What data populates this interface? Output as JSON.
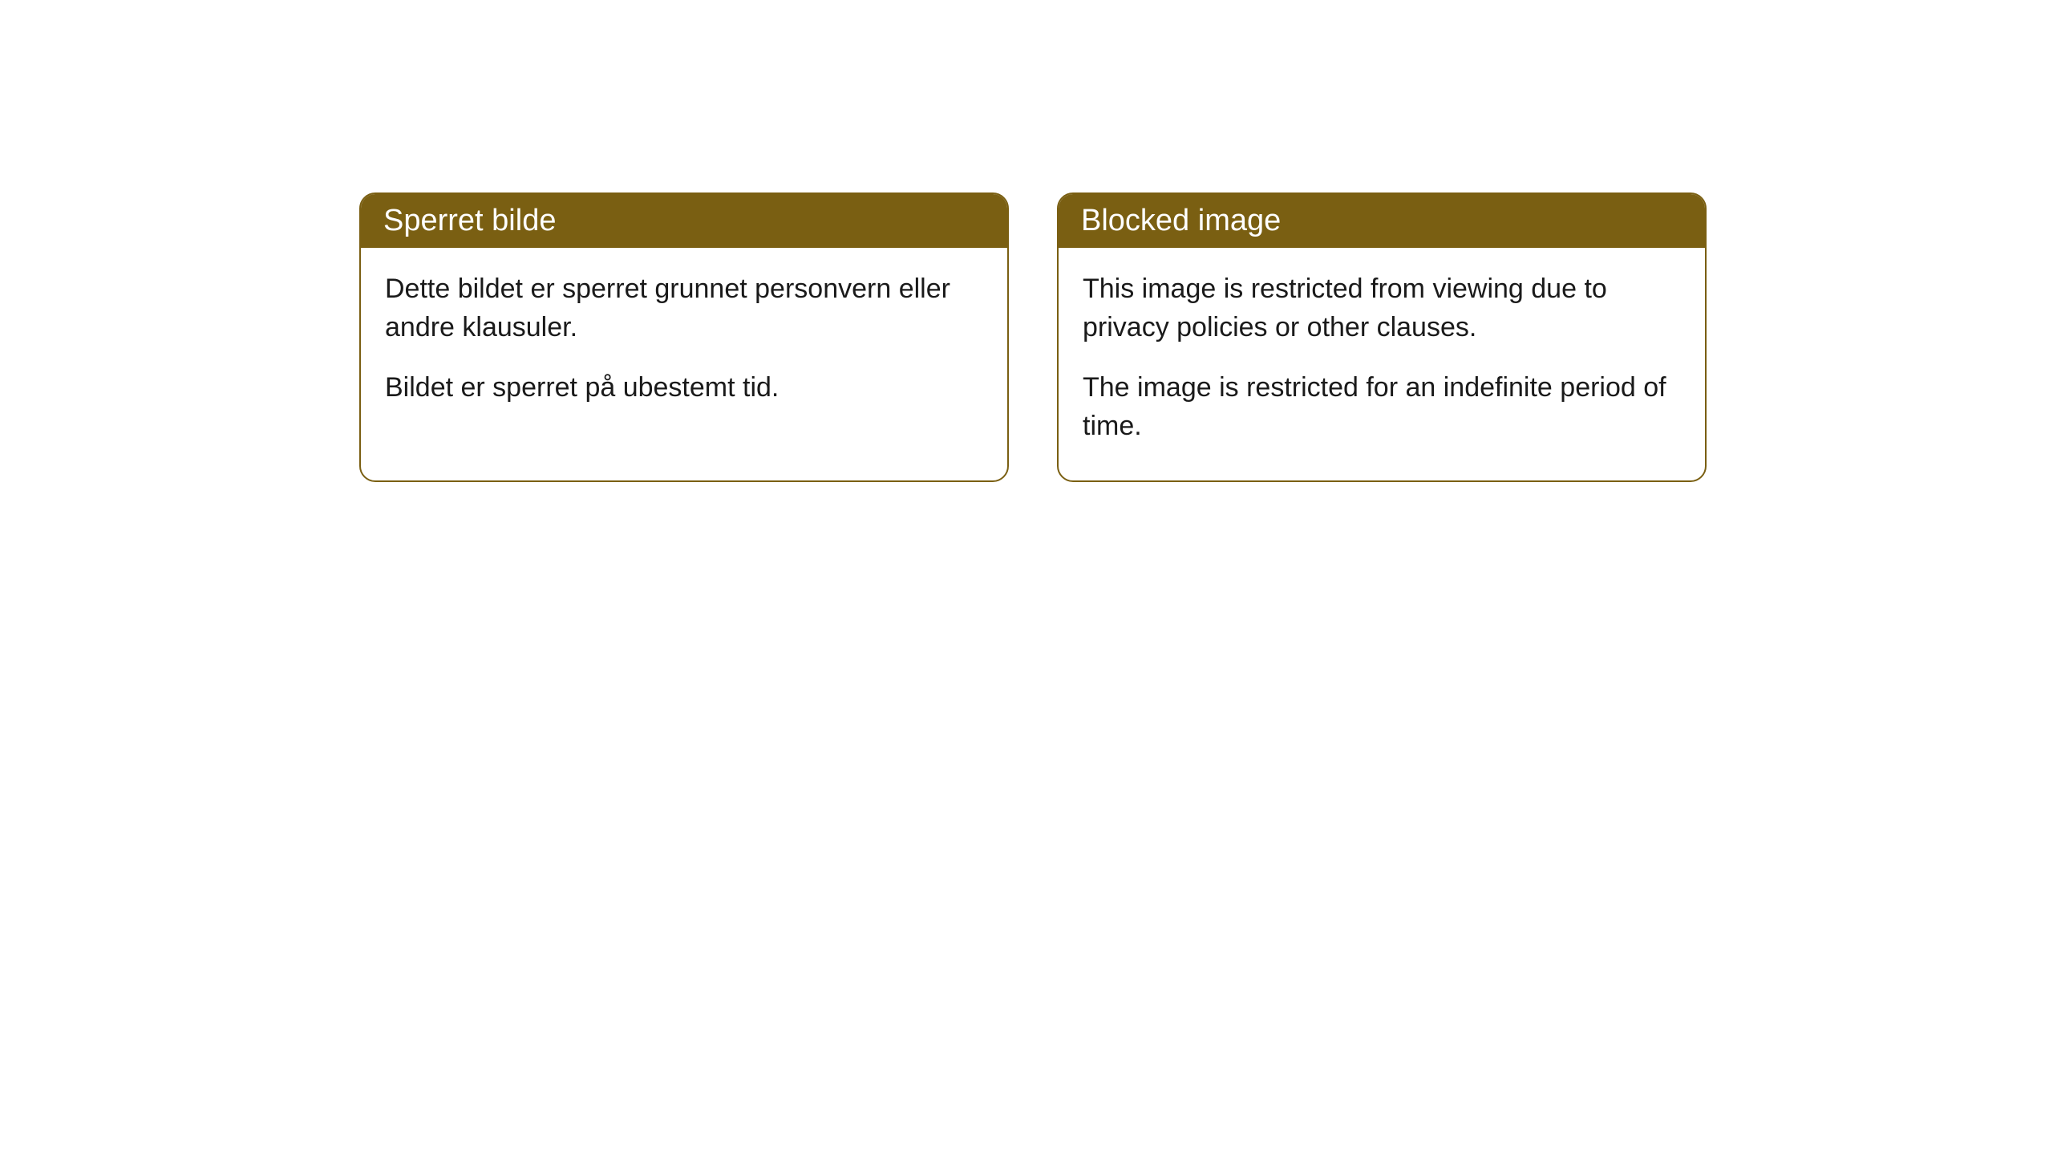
{
  "cards": [
    {
      "title": "Sperret bilde",
      "paragraph1": "Dette bildet er sperret grunnet personvern eller andre klausuler.",
      "paragraph2": "Bildet er sperret på ubestemt tid."
    },
    {
      "title": "Blocked image",
      "paragraph1": "This image is restricted from viewing due to privacy policies or other clauses.",
      "paragraph2": "The image is restricted for an indefinite period of time."
    }
  ],
  "style": {
    "header_bg_color": "#7a5f12",
    "header_text_color": "#ffffff",
    "border_color": "#7a5f12",
    "body_text_color": "#1a1a1a",
    "body_bg_color": "#ffffff",
    "border_radius": 20,
    "header_fontsize": 38,
    "body_fontsize": 34
  }
}
